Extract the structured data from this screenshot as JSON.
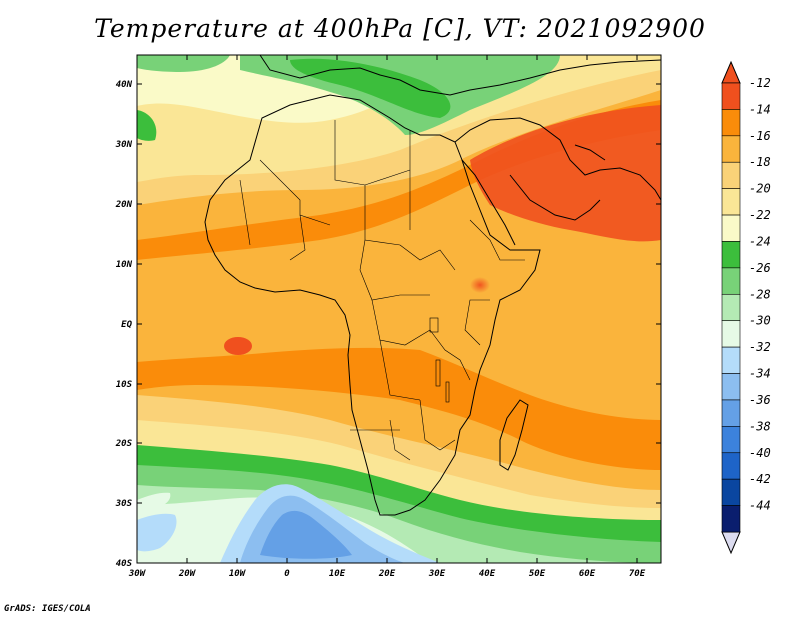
{
  "title": "Temperature at 400hPa [C], VT: 2021092900",
  "credit": "GrADS: IGES/COLA",
  "map": {
    "lat_ticks": [
      "40N",
      "30N",
      "20N",
      "10N",
      "EQ",
      "10S",
      "20S",
      "30S",
      "40S"
    ],
    "lon_ticks": [
      "30W",
      "20W",
      "10W",
      "0",
      "10E",
      "20E",
      "30E",
      "40E",
      "50E",
      "60E",
      "70E"
    ]
  },
  "colorbar": {
    "labels": [
      "-12",
      "-14",
      "-16",
      "-18",
      "-20",
      "-22",
      "-24",
      "-26",
      "-28",
      "-30",
      "-32",
      "-34",
      "-36",
      "-38",
      "-40",
      "-42",
      "-44"
    ],
    "colors": [
      "#f0501e",
      "#fa8c0a",
      "#fab43c",
      "#fad278",
      "#fae696",
      "#fafac8",
      "#3cbe3c",
      "#78d278",
      "#b4eab4",
      "#e6fae6",
      "#b4dcfa",
      "#8cbef0",
      "#64a0e6",
      "#3c82dc",
      "#1e64c8",
      "#0a46a0",
      "#0a1e6e"
    ],
    "over_color": "#f0501e",
    "under_color": "#dcdcf0"
  }
}
